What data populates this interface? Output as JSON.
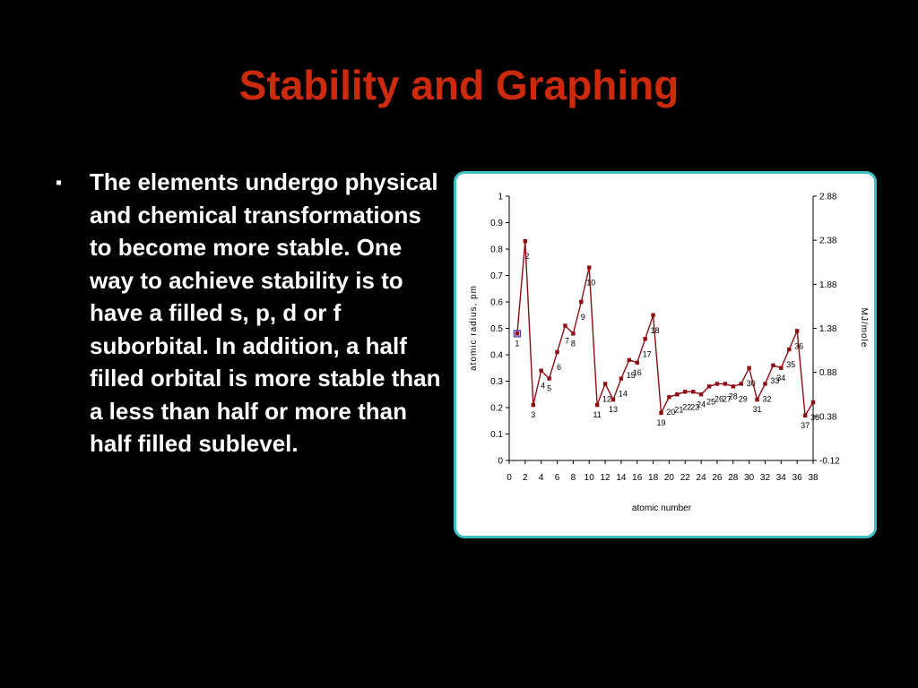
{
  "slide": {
    "title": "Stability and Graphing",
    "bullet_marker": "▪",
    "bullet_text": "The elements undergo physical and chemical transformations to become more stable. One way to achieve stability is to have a filled s, p, d or f suborbital.  In addition, a half filled orbital is more stable than a less than half or more than half filled sublevel."
  },
  "colors": {
    "background": "#000000",
    "title": "#cc2a0c",
    "text": "#ffffff",
    "chart_border": "#3fbfc3",
    "series": "#8b0f14",
    "highlight_marker": "#5a3fb8"
  },
  "chart_data": {
    "type": "line",
    "xlabel": "atomic number",
    "ylabel": "atomic radius, pm",
    "y2label": "MJ/mole",
    "xlim": [
      0,
      38
    ],
    "ylim": [
      0,
      1
    ],
    "y2lim": [
      -0.12,
      2.88
    ],
    "x_ticks": [
      "0",
      "2",
      "4",
      "6",
      "8",
      "10",
      "12",
      "14",
      "16",
      "18",
      "20",
      "22",
      "24",
      "26",
      "28",
      "30",
      "32",
      "34",
      "36",
      "38"
    ],
    "y_ticks": [
      "0",
      "0.1",
      "0.2",
      "0.3",
      "0.4",
      "0.5",
      "0.6",
      "0.7",
      "0.8",
      "0.9",
      "1"
    ],
    "y2_ticks": [
      "-0.12",
      "0.38",
      "0.88",
      "1.38",
      "1.88",
      "2.38",
      "2.88"
    ],
    "grid": false,
    "legend": "none",
    "series": [
      {
        "x": [
          1,
          2,
          3,
          4,
          5,
          6,
          7,
          8,
          9,
          10,
          11,
          12,
          13,
          14,
          15,
          16,
          17,
          18,
          19,
          20,
          21,
          22,
          23,
          24,
          25,
          26,
          27,
          28,
          29,
          30,
          31,
          32,
          33,
          34,
          35,
          36,
          37,
          38
        ],
        "y": [
          0.48,
          0.83,
          0.21,
          0.34,
          0.31,
          0.41,
          0.51,
          0.48,
          0.6,
          0.73,
          0.21,
          0.29,
          0.23,
          0.31,
          0.38,
          0.37,
          0.46,
          0.55,
          0.18,
          0.24,
          0.25,
          0.26,
          0.26,
          0.25,
          0.28,
          0.29,
          0.29,
          0.28,
          0.29,
          0.35,
          0.23,
          0.29,
          0.36,
          0.35,
          0.42,
          0.49,
          0.17,
          0.22
        ],
        "point_labels": [
          "1",
          "2",
          "3",
          "4",
          "5",
          "6",
          "7",
          "8",
          "9",
          "10",
          "11",
          "12",
          "13",
          "14",
          "15",
          "16",
          "17",
          "18",
          "19",
          "20",
          "21",
          "22",
          "23",
          "24",
          "25",
          "26",
          "27",
          "28",
          "29",
          "30",
          "31",
          "32",
          "33",
          "34",
          "35",
          "36",
          "37",
          "38"
        ]
      }
    ]
  }
}
